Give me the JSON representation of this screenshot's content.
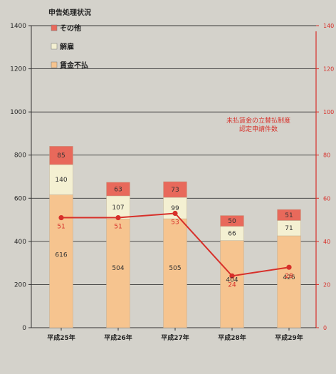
{
  "chart_data": {
    "type": "bar",
    "stacked": true,
    "categories": [
      "平成25年",
      "平成26年",
      "平成27年",
      "平成28年",
      "平成29年"
    ],
    "series": [
      {
        "name": "賃金不払",
        "color": "#f6c48f",
        "values": [
          616,
          504,
          505,
          404,
          426
        ]
      },
      {
        "name": "解雇",
        "color": "#f4f0d2",
        "values": [
          140,
          107,
          99,
          66,
          71
        ]
      },
      {
        "name": "その他",
        "color": "#e8695b",
        "values": [
          85,
          63,
          73,
          50,
          51
        ]
      }
    ],
    "line_series": {
      "name": "未払賃金の立替払制度\n認定申請件数",
      "color": "#d7302a",
      "axis": "right",
      "values": [
        51,
        51,
        53,
        24,
        28
      ]
    },
    "legend_title": "申告処理状況",
    "legend_order": [
      "その他",
      "解雇",
      "賃金不払"
    ],
    "legend_position": "top-left",
    "annotation": [
      "未払賃金の立替払制度",
      "認定申請件数"
    ],
    "y_left": {
      "min": 0,
      "max": 1400,
      "ticks": [
        0,
        200,
        400,
        600,
        800,
        1000,
        1200,
        1400
      ]
    },
    "y_right": {
      "min": 0,
      "max": 140,
      "ticks": [
        0,
        20,
        40,
        60,
        80,
        100,
        120,
        140
      ]
    },
    "grid": true
  }
}
